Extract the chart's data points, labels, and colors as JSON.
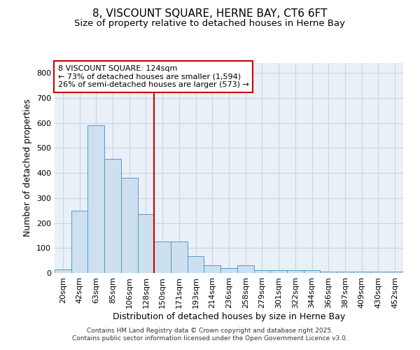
{
  "title": "8, VISCOUNT SQUARE, HERNE BAY, CT6 6FT",
  "subtitle": "Size of property relative to detached houses in Herne Bay",
  "xlabel": "Distribution of detached houses by size in Herne Bay",
  "ylabel": "Number of detached properties",
  "bar_values": [
    15,
    250,
    590,
    457,
    380,
    235,
    125,
    125,
    67,
    30,
    20,
    30,
    10,
    10,
    10,
    10,
    7,
    5,
    5,
    5,
    5
  ],
  "bar_labels": [
    "20sqm",
    "42sqm",
    "63sqm",
    "85sqm",
    "106sqm",
    "128sqm",
    "150sqm",
    "171sqm",
    "193sqm",
    "214sqm",
    "236sqm",
    "258sqm",
    "279sqm",
    "301sqm",
    "322sqm",
    "344sqm",
    "366sqm",
    "387sqm",
    "409sqm",
    "430sqm",
    "452sqm"
  ],
  "bar_color": "#cce0f0",
  "bar_edge_color": "#5599cc",
  "vline_color": "#cc0000",
  "vline_position": 5.5,
  "annotation_text": "8 VISCOUNT SQUARE: 124sqm\n← 73% of detached houses are smaller (1,594)\n26% of semi-detached houses are larger (573) →",
  "annotation_fontsize": 8,
  "grid_color": "#c8d4e0",
  "background_color": "#eaf0f8",
  "ylim": [
    0,
    840
  ],
  "yticks": [
    0,
    100,
    200,
    300,
    400,
    500,
    600,
    700,
    800
  ],
  "footer_line1": "Contains HM Land Registry data © Crown copyright and database right 2025.",
  "footer_line2": "Contains public sector information licensed under the Open Government Licence v3.0.",
  "title_fontsize": 11,
  "subtitle_fontsize": 9.5,
  "xlabel_fontsize": 9,
  "ylabel_fontsize": 9,
  "tick_fontsize": 8
}
